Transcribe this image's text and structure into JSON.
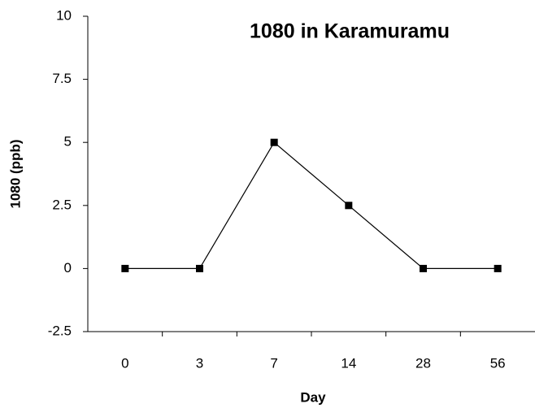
{
  "chart_data": {
    "type": "line",
    "title": "1080 in Karamuramu",
    "xlabel": "Day",
    "ylabel": "1080 (ppb)",
    "categories": [
      "0",
      "3",
      "7",
      "14",
      "28",
      "56"
    ],
    "series": [
      {
        "name": "1080",
        "color": "#000000",
        "values": [
          0,
          0,
          5,
          2.5,
          0,
          0
        ]
      }
    ],
    "ylim": [
      -2.5,
      10
    ],
    "yticks": [
      -2.5,
      0,
      2.5,
      5,
      7.5,
      10
    ],
    "grid": false,
    "legend": false
  }
}
